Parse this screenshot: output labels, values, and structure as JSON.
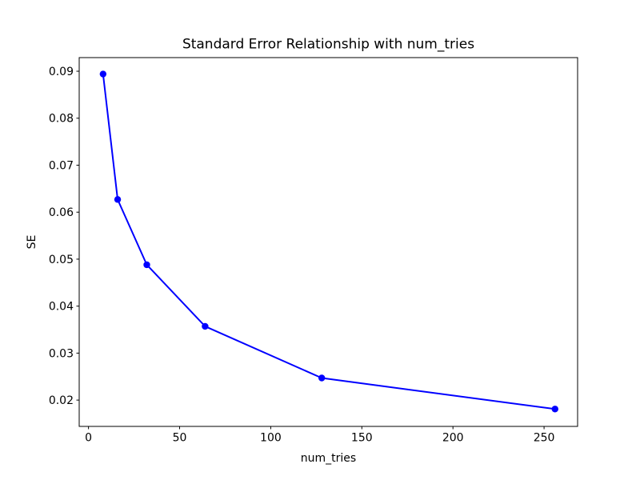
{
  "chart_data": {
    "type": "line",
    "title": "Standard Error Relationship with num_tries",
    "xlabel": "num_tries",
    "ylabel": "SE",
    "series": [
      {
        "name": "SE",
        "x": [
          8,
          16,
          32,
          64,
          128,
          256
        ],
        "y": [
          0.0894,
          0.0627,
          0.0488,
          0.0357,
          0.0247,
          0.0181
        ],
        "line_color": "#0000ff",
        "marker": "circle",
        "marker_color": "#0000ff"
      }
    ],
    "xlim": [
      -5.1,
      268.4
    ],
    "ylim": [
      0.0144,
      0.0929
    ],
    "xticks": [
      0,
      50,
      100,
      150,
      200,
      250
    ],
    "xtick_labels": [
      "0",
      "50",
      "100",
      "150",
      "200",
      "250"
    ],
    "yticks": [
      0.02,
      0.03,
      0.04,
      0.05,
      0.06,
      0.07,
      0.08,
      0.09
    ],
    "ytick_labels": [
      "0.02",
      "0.03",
      "0.04",
      "0.05",
      "0.06",
      "0.07",
      "0.08",
      "0.09"
    ],
    "grid": false,
    "legend_position": "none",
    "background_color": "#ffffff",
    "spine_color": "#000000"
  }
}
